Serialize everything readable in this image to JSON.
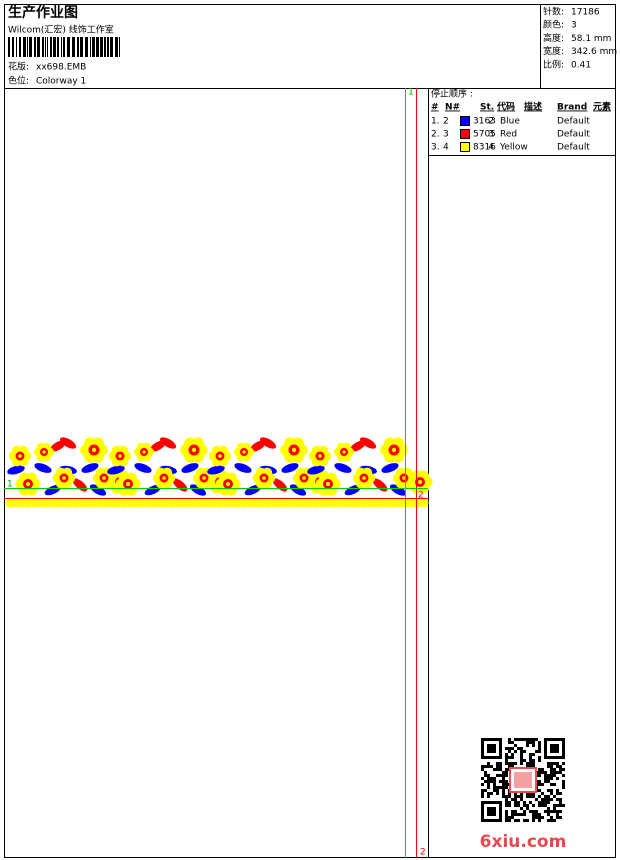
{
  "header": {
    "title": "生产作业图",
    "subtitle": "Wilcom(汇宏) 线饰工作室",
    "design_label": "花版:",
    "design_value": "xx698.EMB",
    "colorway_label": "色位:",
    "colorway_value": "Colorway 1"
  },
  "info": {
    "rows": [
      [
        "针数:",
        "17186"
      ],
      [
        "颜色:",
        "3"
      ],
      [
        "高度:",
        "58.1 mm"
      ],
      [
        "宽度:",
        "342.6 mm"
      ],
      [
        "比例:",
        "0.41"
      ]
    ]
  },
  "stop_sequence": {
    "title": "停止顺序 :",
    "columns": [
      "#",
      "N#",
      "St.",
      "代码",
      "描述",
      "Brand",
      "元素"
    ],
    "rows": [
      {
        "index": "1.",
        "needle": "2",
        "color": "#0000ff",
        "stitches": "3163",
        "code": "2",
        "description": "Blue",
        "brand": "Default"
      },
      {
        "index": "2.",
        "needle": "3",
        "color": "#ff0000",
        "stitches": "5705",
        "code": "3",
        "description": "Red",
        "brand": "Default"
      },
      {
        "index": "3.",
        "needle": "4",
        "color": "#ffff00",
        "stitches": "8316",
        "code": "4",
        "description": "Yellow",
        "brand": "Default"
      }
    ]
  },
  "guides": {
    "green_top": "1",
    "green_left": "1",
    "red_right": "2",
    "red_bottom": "2"
  },
  "watermark": "6xiu.com"
}
